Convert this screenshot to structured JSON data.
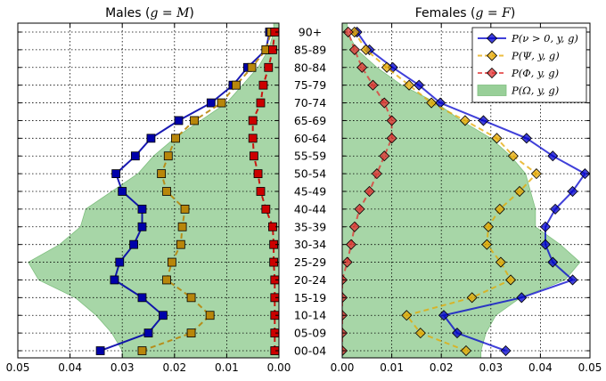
{
  "chart_data": [
    {
      "type": "line",
      "title": "Males (g=M)",
      "axis_direction": "reversed",
      "xlim": [
        0.0,
        0.05
      ],
      "x_ticks": [
        "0.05",
        "0.04",
        "0.03",
        "0.02",
        "0.01",
        "0.00"
      ],
      "categories": [
        "00-04",
        "05-09",
        "10-14",
        "15-19",
        "20-24",
        "25-29",
        "30-34",
        "35-39",
        "40-44",
        "45-49",
        "50-54",
        "55-59",
        "60-64",
        "65-69",
        "70-74",
        "75-79",
        "80-84",
        "85-89",
        "90+"
      ],
      "grid": true,
      "area": {
        "name": "P(Ω, y, g)",
        "color": "#98cf98",
        "values": [
          0.03,
          0.032,
          0.035,
          0.039,
          0.046,
          0.048,
          0.042,
          0.038,
          0.037,
          0.032,
          0.027,
          0.024,
          0.02,
          0.015,
          0.01,
          0.007,
          0.004,
          0.002,
          0.001
        ]
      },
      "series": [
        {
          "name": "P(ν > 0, y, g)",
          "color": "#0000aa",
          "line": "solid",
          "values": [
            0.0342,
            0.025,
            0.0222,
            0.0262,
            0.0315,
            0.0305,
            0.0278,
            0.0262,
            0.0262,
            0.03,
            0.0312,
            0.0275,
            0.0245,
            0.0192,
            0.013,
            0.0088,
            0.006,
            0.0025,
            0.0018
          ]
        },
        {
          "name": "P(Ψ, y, g)",
          "color": "#b8860b",
          "line": "dashed",
          "values": [
            0.0262,
            0.0168,
            0.0132,
            0.0168,
            0.0215,
            0.0205,
            0.0188,
            0.0185,
            0.018,
            0.0215,
            0.0225,
            0.0212,
            0.0198,
            0.0162,
            0.011,
            0.0082,
            0.0052,
            0.0025,
            0.0015
          ]
        },
        {
          "name": "P(Φ, y, g)",
          "color": "#cc0000",
          "line": "dashed",
          "values": [
            0.0008,
            0.0008,
            0.0008,
            0.0008,
            0.0008,
            0.001,
            0.001,
            0.0012,
            0.0025,
            0.0035,
            0.004,
            0.0048,
            0.005,
            0.005,
            0.0035,
            0.003,
            0.002,
            0.0012,
            0.0008
          ]
        }
      ]
    },
    {
      "type": "line",
      "title": "Females (g=F)",
      "axis_direction": "normal",
      "xlim": [
        0.0,
        0.05
      ],
      "x_ticks": [
        "0.00",
        "0.01",
        "0.02",
        "0.03",
        "0.04",
        "0.05"
      ],
      "categories": [
        "00-04",
        "05-09",
        "10-14",
        "15-19",
        "20-24",
        "25-29",
        "30-34",
        "35-39",
        "40-44",
        "45-49",
        "50-54",
        "55-59",
        "60-64",
        "65-69",
        "70-74",
        "75-79",
        "80-84",
        "85-89",
        "90+"
      ],
      "grid": true,
      "legend": "top-right",
      "area": {
        "name": "P(Ω, y, g)",
        "color": "#98cf98",
        "values": [
          0.028,
          0.029,
          0.031,
          0.036,
          0.045,
          0.048,
          0.044,
          0.039,
          0.039,
          0.038,
          0.037,
          0.034,
          0.03,
          0.024,
          0.019,
          0.012,
          0.007,
          0.003,
          0.001
        ]
      },
      "series": [
        {
          "name": "P(ν > 0, y, g)",
          "color": "#0000cc",
          "line": "solid",
          "values": [
            0.033,
            0.0232,
            0.0205,
            0.0362,
            0.0465,
            0.0425,
            0.041,
            0.041,
            0.043,
            0.0465,
            0.049,
            0.0425,
            0.0372,
            0.0285,
            0.0198,
            0.0155,
            0.0102,
            0.0055,
            0.003
          ]
        },
        {
          "name": "P(Ψ, y, g)",
          "color": "#e6a800",
          "line": "dashed",
          "values": [
            0.025,
            0.0158,
            0.013,
            0.0262,
            0.034,
            0.032,
            0.0292,
            0.0295,
            0.0318,
            0.0358,
            0.0392,
            0.0345,
            0.0312,
            0.0248,
            0.018,
            0.0135,
            0.009,
            0.0048,
            0.0025
          ]
        },
        {
          "name": "P(Φ, y, g)",
          "color": "#e03030",
          "line": "dashed",
          "values": [
            0.0,
            0.0,
            0.0,
            0.0,
            0.0,
            0.001,
            0.0018,
            0.0025,
            0.0035,
            0.0055,
            0.007,
            0.0085,
            0.01,
            0.01,
            0.0085,
            0.0062,
            0.004,
            0.0025,
            0.0012
          ]
        }
      ]
    }
  ],
  "legend_labels": {
    "nu": "P(ν > 0, y, g)",
    "psi": "P(Ψ, y, g)",
    "phi": "P(Φ, y, g)",
    "omega": "P(Ω, y, g)"
  }
}
